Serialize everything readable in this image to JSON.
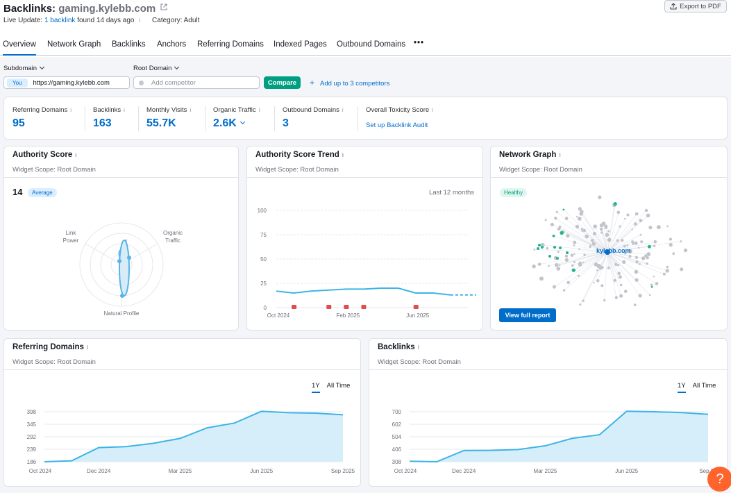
{
  "header": {
    "title_prefix": "Backlinks:",
    "domain": "gaming.kylebb.com",
    "live_label": "Live Update:",
    "live_link": "1 backlink",
    "live_rest": "found 14 days ago",
    "category": "Category: Adult",
    "export_label": "Export to PDF"
  },
  "tabs": [
    "Overview",
    "Network Graph",
    "Backlinks",
    "Anchors",
    "Referring Domains",
    "Indexed Pages",
    "Outbound Domains",
    "•••"
  ],
  "filters": {
    "subdomain": "Subdomain",
    "root_domain": "Root Domain",
    "you": "You",
    "url": "https://gaming.kylebb.com",
    "competitor_placeholder": "Add competitor",
    "compare": "Compare",
    "add_competitors": "Add up to 3 competitors"
  },
  "metrics": [
    {
      "label": "Referring Domains",
      "value": "95"
    },
    {
      "label": "Backlinks",
      "value": "163"
    },
    {
      "label": "Monthly Visits",
      "value": "55.7K"
    },
    {
      "label": "Organic Traffic",
      "value": "2.6K"
    },
    {
      "label": "Outbound Domains",
      "value": "3"
    },
    {
      "label": "Overall Toxicity Score",
      "value": "Set up Backlink Audit"
    }
  ],
  "authority": {
    "title": "Authority Score",
    "scope": "Widget Scope: Root Domain",
    "score": "14",
    "badge": "Average",
    "axes": [
      "Link",
      "Power",
      "Organic",
      "Traffic",
      "Natural Profile"
    ]
  },
  "trend": {
    "title": "Authority Score Trend",
    "scope": "Widget Scope: Root Domain",
    "range": "Last 12 months",
    "y_ticks": [
      "100",
      "75",
      "50",
      "25",
      "0"
    ],
    "x_ticks": [
      "Oct 2024",
      "Feb 2025",
      "Jun 2025"
    ]
  },
  "network": {
    "title": "Network Graph",
    "scope": "Widget Scope: Root Domain",
    "badge": "Healthy",
    "center_label": "kylebb.com",
    "button": "View full report"
  },
  "referring": {
    "title": "Referring Domains",
    "scope": "Widget Scope: Root Domain",
    "toggle_1y": "1Y",
    "toggle_all": "All Time",
    "y_ticks": [
      "398",
      "345",
      "292",
      "239",
      "186"
    ],
    "x_ticks": [
      "Oct 2024",
      "Dec 2024",
      "Mar 2025",
      "Jun 2025",
      "Sep 2025"
    ]
  },
  "backlinks": {
    "title": "Backlinks",
    "scope": "Widget Scope: Root Domain",
    "toggle_1y": "1Y",
    "toggle_all": "All Time",
    "y_ticks": [
      "700",
      "602",
      "504",
      "406",
      "308"
    ],
    "x_ticks": [
      "Oct 2024",
      "Dec 2024",
      "Mar 2025",
      "Jun 2025",
      "Sep 20"
    ]
  },
  "help_label": "?",
  "chart_data": [
    {
      "type": "line",
      "title": "Authority Score Trend",
      "x": [
        "Oct 2024",
        "Nov 2024",
        "Dec 2024",
        "Jan 2025",
        "Feb 2025",
        "Mar 2025",
        "Apr 2025",
        "May 2025",
        "Jun 2025",
        "Jul 2025",
        "Aug 2025",
        "Sep 2025"
      ],
      "values": [
        17,
        15,
        17,
        18,
        19,
        19,
        20,
        20,
        15,
        15,
        13,
        13
      ],
      "ylim": [
        0,
        100
      ]
    },
    {
      "type": "area",
      "title": "Referring Domains",
      "x": [
        "Oct 2024",
        "Nov 2024",
        "Dec 2024",
        "Jan 2025",
        "Feb 2025",
        "Mar 2025",
        "Apr 2025",
        "May 2025",
        "Jun 2025",
        "Jul 2025",
        "Aug 2025",
        "Sep 2025"
      ],
      "values": [
        186,
        190,
        246,
        250,
        264,
        285,
        330,
        350,
        400,
        394,
        392,
        385
      ],
      "ylim": [
        186,
        398
      ]
    },
    {
      "type": "area",
      "title": "Backlinks",
      "x": [
        "Oct 2024",
        "Nov 2024",
        "Dec 2024",
        "Jan 2025",
        "Feb 2025",
        "Mar 2025",
        "Apr 2025",
        "May 2025",
        "Jun 2025",
        "Jul 2025",
        "Aug 2025",
        "Sep 2025"
      ],
      "values": [
        312,
        308,
        396,
        397,
        404,
        433,
        492,
        520,
        704,
        700,
        694,
        680
      ],
      "ylim": [
        308,
        700
      ]
    }
  ]
}
